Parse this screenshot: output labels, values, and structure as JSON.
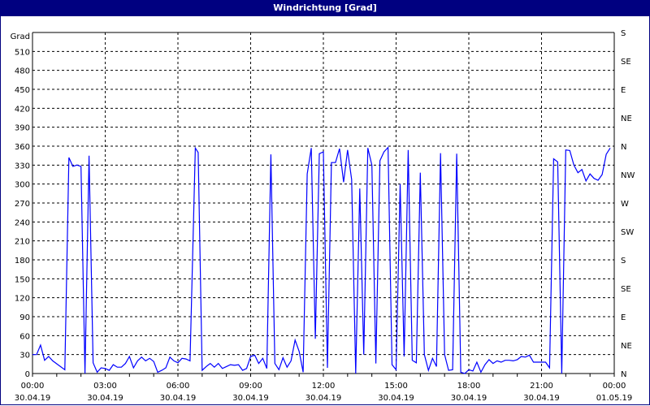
{
  "window": {
    "title": "Windrichtung [Grad]"
  },
  "chart_data": {
    "type": "line",
    "title": "Windrichtung [Grad]",
    "ylabel": "Grad",
    "ylim": [
      0,
      540
    ],
    "yticks": [
      0,
      30,
      60,
      90,
      120,
      150,
      180,
      210,
      240,
      270,
      300,
      330,
      360,
      390,
      420,
      450,
      480,
      510
    ],
    "right_axis": {
      "labels": [
        "N",
        "NE",
        "E",
        "SE",
        "S",
        "SW",
        "W",
        "NW",
        "N",
        "NE",
        "E",
        "SE",
        "S"
      ],
      "values": [
        0,
        45,
        90,
        135,
        180,
        225,
        270,
        315,
        360,
        405,
        450,
        495,
        540
      ]
    },
    "xticks": [
      {
        "time": "00:00",
        "date": "30.04.19"
      },
      {
        "time": "03:00",
        "date": "30.04.19"
      },
      {
        "time": "06:00",
        "date": "30.04.19"
      },
      {
        "time": "09:00",
        "date": "30.04.19"
      },
      {
        "time": "12:00",
        "date": "30.04.19"
      },
      {
        "time": "15:00",
        "date": "30.04.19"
      },
      {
        "time": "18:00",
        "date": "30.04.19"
      },
      {
        "time": "21:00",
        "date": "30.04.19"
      },
      {
        "time": "00:00",
        "date": "01.05.19"
      }
    ],
    "xlim": [
      "30.04.19 00:00",
      "01.05.19 00:00"
    ],
    "grid": true,
    "line_color": "#0000ff",
    "series": [
      {
        "x": [
          "00:00",
          "00:10",
          "00:20",
          "00:30",
          "00:40",
          "00:50",
          "01:05",
          "01:20",
          "01:30",
          "01:40",
          "01:50",
          "02:00",
          "02:10",
          "02:20",
          "02:30",
          "02:40",
          "02:50",
          "03:00",
          "03:10",
          "03:20",
          "03:30",
          "03:40",
          "03:50",
          "04:00",
          "04:10",
          "04:20",
          "04:30",
          "04:40",
          "04:50",
          "05:00",
          "05:10",
          "05:20",
          "05:30",
          "05:40",
          "05:50",
          "06:00",
          "06:10",
          "06:20",
          "06:30",
          "06:43",
          "06:50",
          "07:00",
          "07:10",
          "07:20",
          "07:30",
          "07:40",
          "07:50",
          "08:00",
          "08:10",
          "08:20",
          "08:30",
          "08:40",
          "08:50",
          "09:00",
          "09:10",
          "09:20",
          "09:30",
          "09:40",
          "09:50",
          "10:00",
          "10:10",
          "10:20",
          "10:30",
          "10:40",
          "10:50",
          "11:00",
          "11:10",
          "11:20",
          "11:30",
          "11:40",
          "11:50",
          "12:00",
          "12:10",
          "12:20",
          "12:30",
          "12:40",
          "12:50",
          "13:00",
          "13:10",
          "13:20",
          "13:30",
          "13:40",
          "13:50",
          "14:00",
          "14:10",
          "14:20",
          "14:30",
          "14:40",
          "14:50",
          "15:00",
          "15:10",
          "15:20",
          "15:30",
          "15:40",
          "15:50",
          "16:00",
          "16:10",
          "16:20",
          "16:30",
          "16:40",
          "16:50",
          "17:00",
          "17:10",
          "17:20",
          "17:30",
          "17:40",
          "17:50",
          "18:00",
          "18:10",
          "18:20",
          "18:30",
          "18:40",
          "18:50",
          "19:00",
          "19:10",
          "19:20",
          "19:30",
          "19:40",
          "19:50",
          "20:00",
          "20:10",
          "20:20",
          "20:30",
          "20:40",
          "20:50",
          "21:00",
          "21:10",
          "21:20",
          "21:30",
          "21:40",
          "21:50",
          "22:00",
          "22:10",
          "22:20",
          "22:30",
          "22:40",
          "22:50",
          "23:00",
          "23:10",
          "23:20",
          "23:30",
          "23:40",
          "23:50"
        ],
        "values": [
          30,
          30,
          45,
          21,
          27,
          20,
          13,
          6,
          342,
          328,
          330,
          328,
          0,
          345,
          17,
          2,
          9,
          8,
          5,
          14,
          10,
          10,
          16,
          27,
          9,
          20,
          26,
          20,
          24,
          19,
          2,
          5,
          9,
          26,
          20,
          17,
          24,
          23,
          20,
          357,
          350,
          5,
          11,
          16,
          10,
          16,
          8,
          11,
          14,
          13,
          14,
          5,
          8,
          27,
          29,
          16,
          24,
          8,
          347,
          16,
          6,
          25,
          10,
          20,
          53,
          35,
          2,
          316,
          357,
          55,
          348,
          351,
          9,
          334,
          334,
          356,
          303,
          354,
          307,
          0,
          293,
          30,
          357,
          330,
          16,
          337,
          351,
          358,
          14,
          6,
          300,
          27,
          354,
          21,
          17,
          318,
          30,
          5,
          24,
          11,
          349,
          30,
          5,
          6,
          348,
          2,
          0,
          6,
          4,
          18,
          2,
          14,
          22,
          16,
          20,
          18,
          21,
          21,
          20,
          22,
          27,
          26,
          29,
          18,
          18,
          18,
          18,
          9,
          340,
          335,
          0,
          354,
          353,
          330,
          318,
          323,
          305,
          316,
          309,
          306,
          315,
          347,
          357
        ]
      }
    ]
  }
}
